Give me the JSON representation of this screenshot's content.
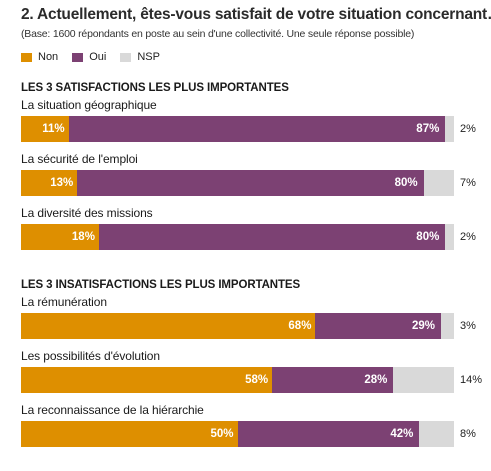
{
  "title": "2. Actuellement, êtes-vous satisfait de votre situation concernant…",
  "subtitle": "(Base: 1600 répondants en poste au sein d'une collectivité. Une seule réponse possible)",
  "colors": {
    "non": "#de8f00",
    "oui": "#7c4173",
    "nsp": "#d9d9d9"
  },
  "legend": [
    {
      "label": "Non",
      "color": "#de8f00"
    },
    {
      "label": "Oui",
      "color": "#7c4173"
    },
    {
      "label": "NSP",
      "color": "#d9d9d9"
    }
  ],
  "chart_data": {
    "type": "bar",
    "stacked": true,
    "orientation": "horizontal",
    "series_order": [
      "Non",
      "Oui",
      "NSP"
    ],
    "groups": [
      {
        "title": "LES 3 SATISFACTIONS LES PLUS IMPORTANTES",
        "items": [
          {
            "label": "La situation géographique",
            "non": 11,
            "oui": 87,
            "nsp": 2,
            "non_label": "11%",
            "oui_label": "87%",
            "nsp_label": "2%"
          },
          {
            "label": "La sécurité de l'emploi",
            "non": 13,
            "oui": 80,
            "nsp": 7,
            "non_label": "13%",
            "oui_label": "80%",
            "nsp_label": "7%"
          },
          {
            "label": "La diversité des missions",
            "non": 18,
            "oui": 80,
            "nsp": 2,
            "non_label": "18%",
            "oui_label": "80%",
            "nsp_label": "2%"
          }
        ]
      },
      {
        "title": "LES 3 INSATISFACTIONS LES PLUS IMPORTANTES",
        "items": [
          {
            "label": "La rémunération",
            "non": 68,
            "oui": 29,
            "nsp": 3,
            "non_label": "68%",
            "oui_label": "29%",
            "nsp_label": "3%"
          },
          {
            "label": "Les possibilités d'évolution",
            "non": 58,
            "oui": 28,
            "nsp": 14,
            "non_label": "58%",
            "oui_label": "28%",
            "nsp_label": "14%"
          },
          {
            "label": "La reconnaissance de la hiérarchie",
            "non": 50,
            "oui": 42,
            "nsp": 8,
            "non_label": "50%",
            "oui_label": "42%",
            "nsp_label": "8%"
          }
        ]
      }
    ]
  }
}
